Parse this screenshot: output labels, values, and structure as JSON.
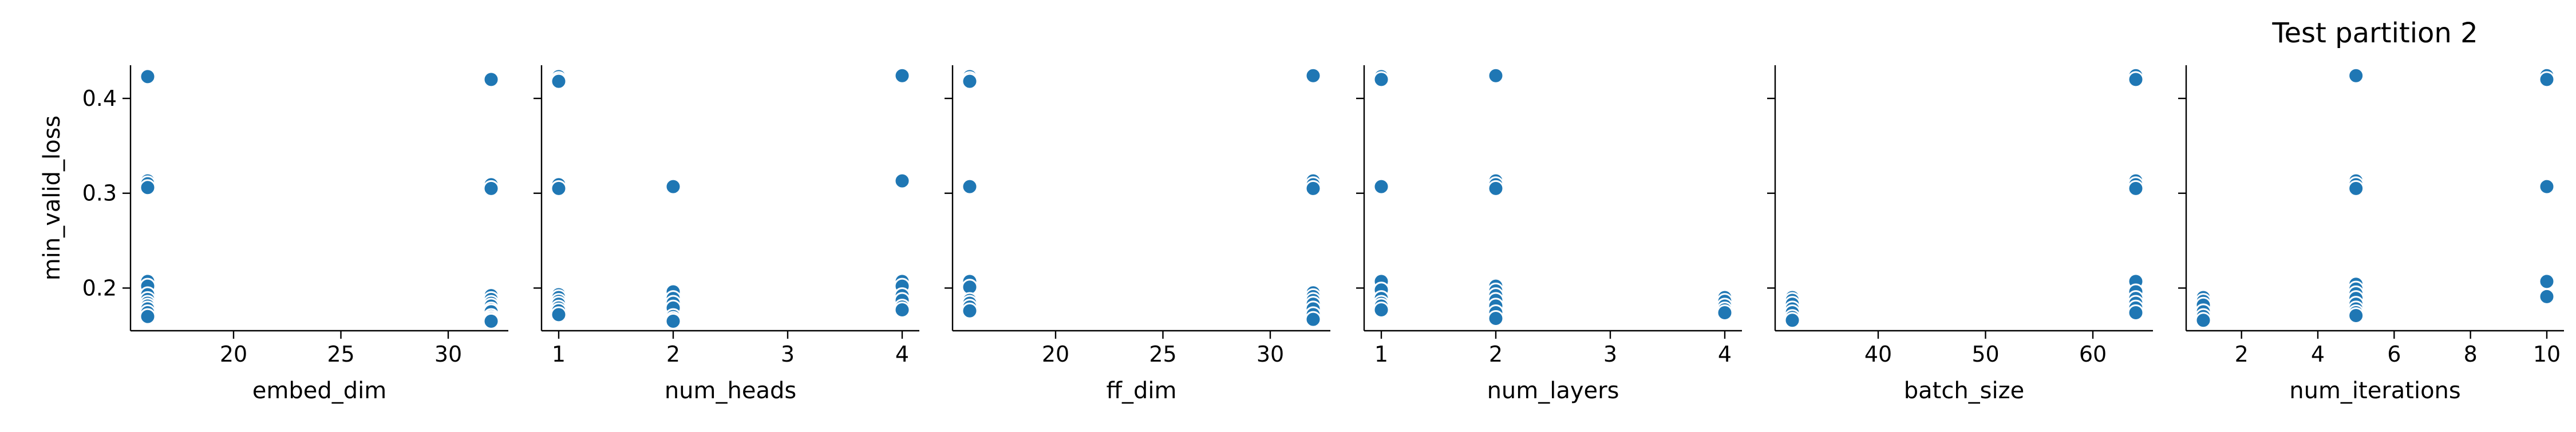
{
  "title": "Test partition 2",
  "ylabel": "min_valid_loss",
  "marker_color": "#1f77b4",
  "chart_data": [
    {
      "type": "scatter",
      "xlabel": "embed_dim",
      "ylabel": "min_valid_loss",
      "xlim": [
        15.2,
        32.8
      ],
      "ylim": [
        0.155,
        0.435
      ],
      "xticks": [
        20,
        25,
        30
      ],
      "yticks": [
        0.2,
        0.3,
        0.4
      ],
      "x": [
        16,
        16,
        16,
        16,
        16,
        16,
        16,
        16,
        16,
        16,
        16,
        16,
        16,
        32,
        32,
        32,
        32,
        32,
        32,
        32,
        32,
        32,
        32,
        32,
        32,
        32
      ],
      "y": [
        0.423,
        0.313,
        0.31,
        0.306,
        0.207,
        0.202,
        0.193,
        0.188,
        0.184,
        0.181,
        0.178,
        0.174,
        0.17,
        0.42,
        0.309,
        0.305,
        0.192,
        0.188,
        0.184,
        0.181,
        0.177,
        0.175,
        0.17,
        0.168,
        0.166,
        0.165
      ]
    },
    {
      "type": "scatter",
      "xlabel": "num_heads",
      "ylabel": "min_valid_loss",
      "xlim": [
        0.85,
        4.15
      ],
      "ylim": [
        0.155,
        0.435
      ],
      "xticks": [
        1,
        2,
        3,
        4
      ],
      "yticks": [
        0.2,
        0.3,
        0.4
      ],
      "title": "",
      "x": [
        1,
        1,
        1,
        1,
        1,
        1,
        1,
        1,
        1,
        1,
        1,
        1,
        2,
        2,
        2,
        2,
        2,
        2,
        2,
        2,
        4,
        4,
        4,
        4,
        4,
        4,
        4,
        4
      ],
      "y": [
        0.423,
        0.42,
        0.418,
        0.309,
        0.305,
        0.193,
        0.19,
        0.186,
        0.183,
        0.179,
        0.176,
        0.172,
        0.307,
        0.196,
        0.189,
        0.184,
        0.179,
        0.17,
        0.167,
        0.165,
        0.424,
        0.313,
        0.207,
        0.202,
        0.192,
        0.187,
        0.18,
        0.177
      ]
    },
    {
      "type": "scatter",
      "xlabel": "ff_dim",
      "ylabel": "min_valid_loss",
      "xlim": [
        15.2,
        32.8
      ],
      "ylim": [
        0.155,
        0.435
      ],
      "xticks": [
        20,
        25,
        30
      ],
      "yticks": [
        0.2,
        0.3,
        0.4
      ],
      "x": [
        16,
        16,
        16,
        16,
        16,
        16,
        16,
        16,
        16,
        16,
        32,
        32,
        32,
        32,
        32,
        32,
        32,
        32,
        32,
        32,
        32
      ],
      "y": [
        0.423,
        0.42,
        0.418,
        0.307,
        0.207,
        0.201,
        0.187,
        0.184,
        0.18,
        0.176,
        0.424,
        0.313,
        0.309,
        0.305,
        0.195,
        0.191,
        0.187,
        0.183,
        0.178,
        0.172,
        0.167
      ]
    },
    {
      "type": "scatter",
      "xlabel": "num_layers",
      "ylabel": "min_valid_loss",
      "xlim": [
        0.85,
        4.15
      ],
      "ylim": [
        0.155,
        0.435
      ],
      "xticks": [
        1,
        2,
        3,
        4
      ],
      "yticks": [
        0.2,
        0.3,
        0.4
      ],
      "x": [
        1,
        1,
        1,
        1,
        1,
        1,
        1,
        1,
        1,
        2,
        2,
        2,
        2,
        2,
        2,
        2,
        2,
        2,
        2,
        2,
        4,
        4,
        4,
        4,
        4
      ],
      "y": [
        0.423,
        0.42,
        0.307,
        0.207,
        0.198,
        0.189,
        0.184,
        0.181,
        0.177,
        0.424,
        0.313,
        0.309,
        0.305,
        0.202,
        0.197,
        0.192,
        0.187,
        0.181,
        0.174,
        0.168,
        0.19,
        0.186,
        0.181,
        0.177,
        0.174
      ]
    },
    {
      "type": "scatter",
      "xlabel": "batch_size",
      "ylabel": "min_valid_loss",
      "xlim": [
        30.4,
        65.6
      ],
      "ylim": [
        0.155,
        0.435
      ],
      "xticks": [
        40,
        50,
        60
      ],
      "yticks": [
        0.2,
        0.3,
        0.4
      ],
      "x": [
        32,
        32,
        32,
        32,
        32,
        32,
        32,
        64,
        64,
        64,
        64,
        64,
        64,
        64,
        64,
        64,
        64,
        64
      ],
      "y": [
        0.19,
        0.187,
        0.183,
        0.178,
        0.174,
        0.169,
        0.166,
        0.424,
        0.42,
        0.313,
        0.309,
        0.305,
        0.207,
        0.196,
        0.189,
        0.184,
        0.179,
        0.174
      ]
    },
    {
      "type": "scatter",
      "xlabel": "num_iterations",
      "ylabel": "min_valid_loss",
      "title": "Test partition 2",
      "xlim": [
        0.55,
        10.45
      ],
      "ylim": [
        0.155,
        0.435
      ],
      "xticks": [
        2,
        4,
        6,
        8,
        10
      ],
      "yticks": [
        0.2,
        0.3,
        0.4
      ],
      "x": [
        1,
        1,
        1,
        1,
        1,
        1,
        5,
        5,
        5,
        5,
        5,
        5,
        5,
        5,
        5,
        5,
        5,
        5,
        10,
        10,
        10,
        10,
        10
      ],
      "y": [
        0.19,
        0.186,
        0.182,
        0.175,
        0.17,
        0.166,
        0.424,
        0.313,
        0.309,
        0.305,
        0.204,
        0.199,
        0.194,
        0.189,
        0.183,
        0.178,
        0.174,
        0.171,
        0.424,
        0.42,
        0.307,
        0.207,
        0.191
      ]
    }
  ]
}
